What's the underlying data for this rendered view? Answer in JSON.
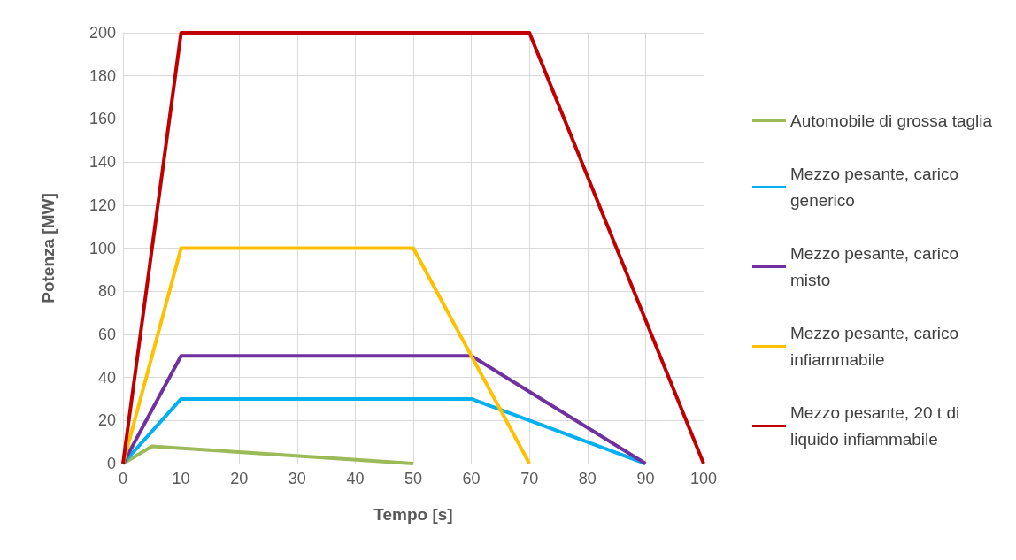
{
  "chart_data": {
    "type": "line",
    "xlabel": "Tempo [s]",
    "ylabel": "Potenza [MW]",
    "xlim": [
      0,
      100
    ],
    "xticks": [
      0,
      10,
      20,
      30,
      40,
      50,
      60,
      70,
      80,
      90,
      100
    ],
    "ylim": [
      0,
      200
    ],
    "yticks": [
      0,
      20,
      40,
      60,
      80,
      100,
      120,
      140,
      160,
      180,
      200
    ],
    "grid": true,
    "legend": "right",
    "marker": "none",
    "line_style": "solid",
    "series": [
      {
        "name": "Automobile di grossa taglia",
        "color": "#9bbb59",
        "x": [
          0,
          5,
          50
        ],
        "values": [
          0,
          8,
          0
        ]
      },
      {
        "name": "Mezzo pesante, carico generico",
        "color": "#00b0f0",
        "x": [
          0,
          10,
          60,
          90
        ],
        "values": [
          0,
          30,
          30,
          0
        ]
      },
      {
        "name": "Mezzo pesante, carico misto",
        "color": "#7030a0",
        "x": [
          0,
          10,
          60,
          90
        ],
        "values": [
          0,
          50,
          50,
          0
        ]
      },
      {
        "name": "Mezzo pesante, carico infiammabile",
        "color": "#ffc000",
        "x": [
          0,
          10,
          50,
          70
        ],
        "values": [
          0,
          100,
          100,
          0
        ]
      },
      {
        "name": "Mezzo pesante, 20 t di liquido infiammabile",
        "color": "#c00000",
        "x": [
          0,
          10,
          70,
          100
        ],
        "values": [
          0,
          200,
          200,
          0
        ]
      }
    ]
  }
}
